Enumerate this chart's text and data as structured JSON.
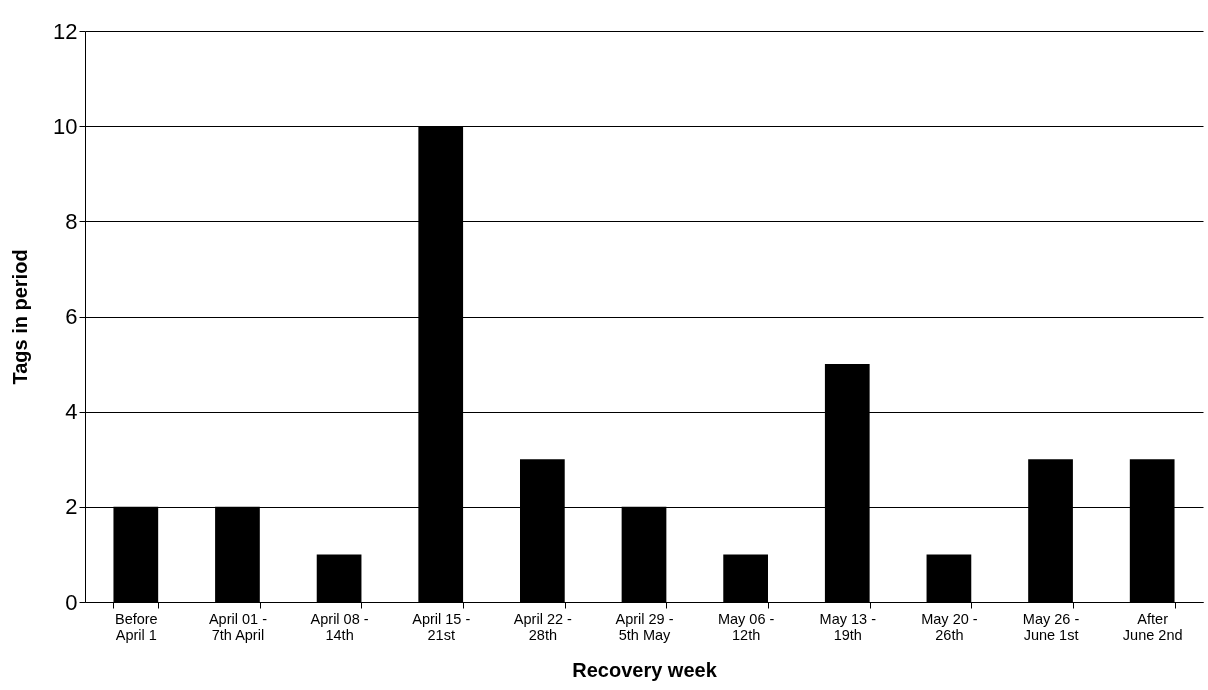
{
  "chart_data": {
    "type": "bar",
    "xlabel": "Recovery week",
    "ylabel": "Tags in period",
    "categories": [
      "Before April 1",
      "April 01 - 7th April",
      "April 08 - 14th",
      "April 15 - 21st",
      "April 22 - 28th",
      "April 29 - 5th May",
      "May 06 - 12th",
      "May 13 - 19th",
      "May 20 - 26th",
      "May 26 - June 1st",
      "After June 2nd"
    ],
    "values": [
      2,
      2,
      1,
      10,
      3,
      2,
      1,
      5,
      1,
      3,
      3
    ],
    "color": "#000000",
    "ylim": [
      0,
      12
    ],
    "yticks": [
      0,
      2,
      4,
      6,
      8,
      10,
      12
    ],
    "grid": "y"
  }
}
